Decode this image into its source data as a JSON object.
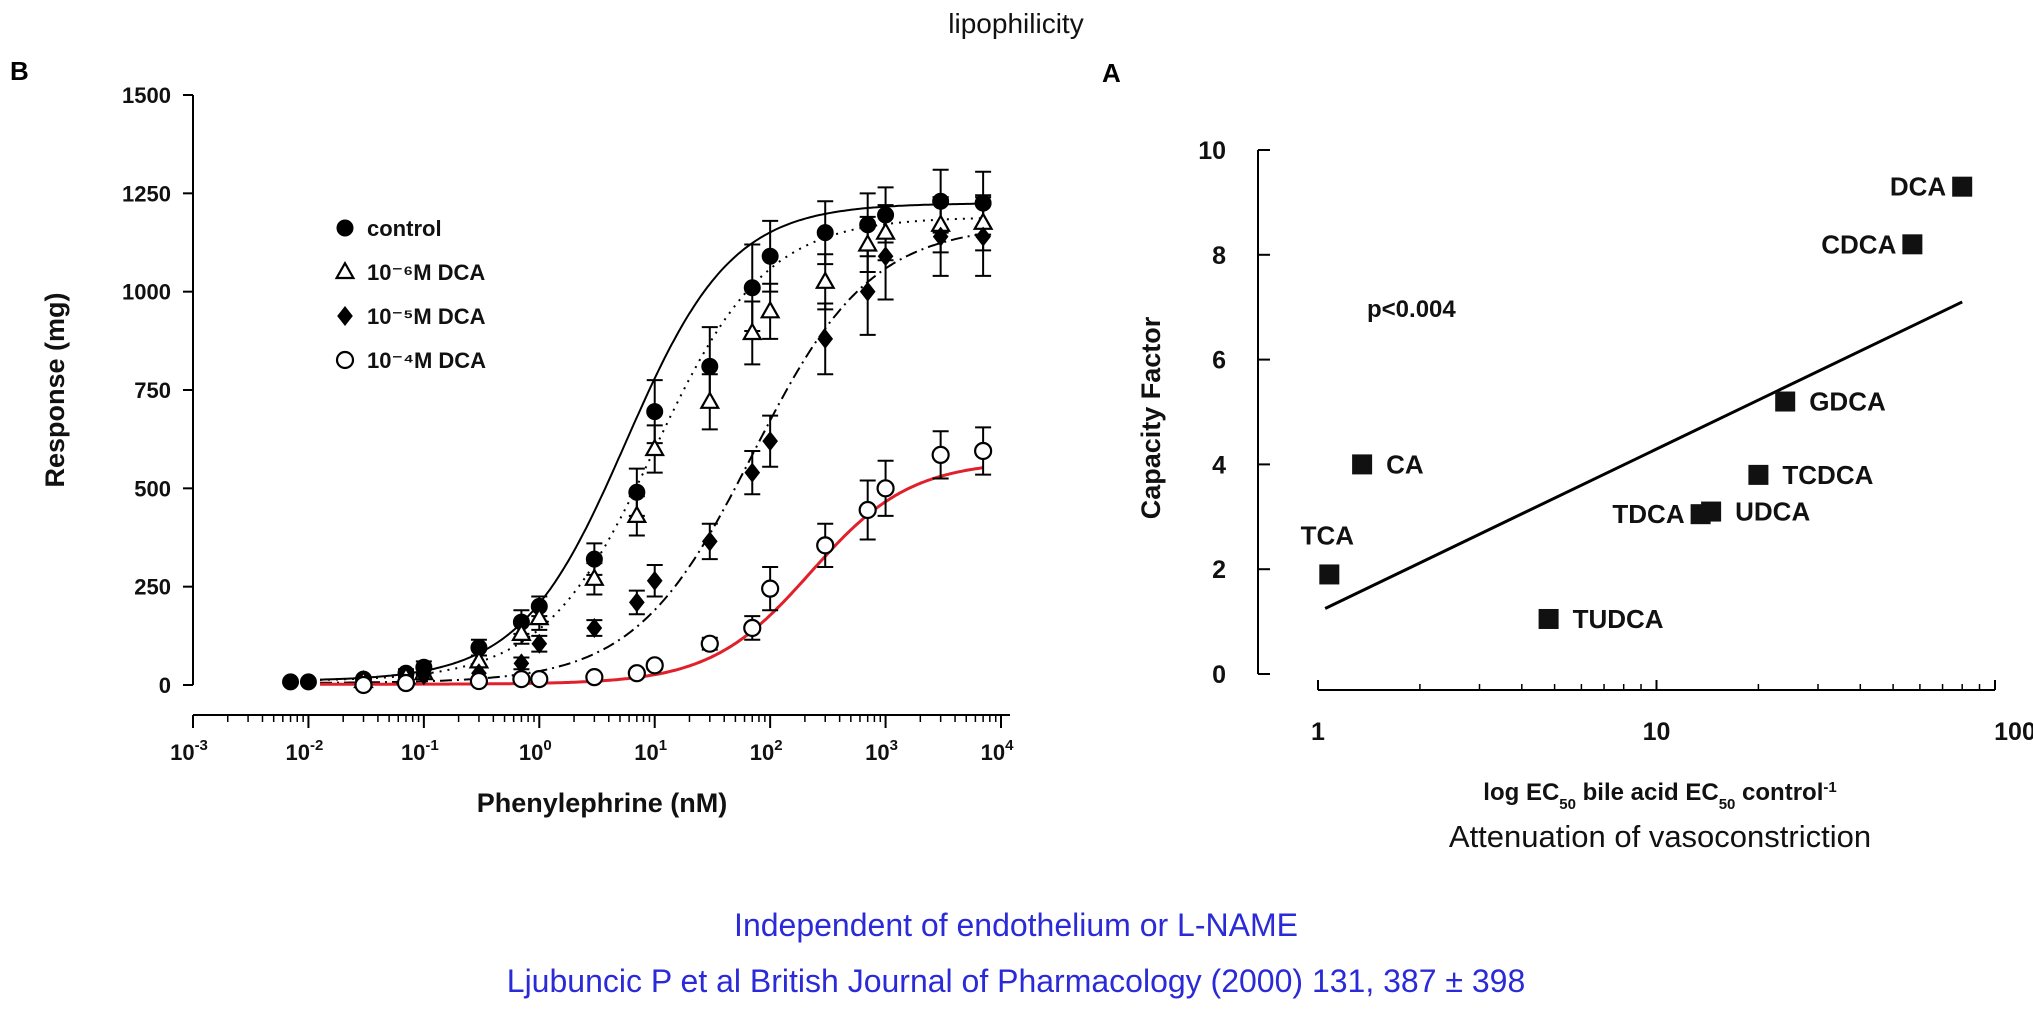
{
  "header": {
    "title": "lipophilicity"
  },
  "panel_b_letter": "B",
  "panel_a_letter": "A",
  "chart_data": [
    {
      "panel": "B",
      "type": "line",
      "xlabel": "Phenylephrine (nM)",
      "ylabel": "Response (mg)",
      "xscale": "log",
      "xlim_log10": [
        -3,
        4
      ],
      "x_tick_exponents": [
        "-3",
        "-2",
        "-1",
        "0",
        "1",
        "2",
        "3",
        "4"
      ],
      "ylim": [
        0,
        1500
      ],
      "y_ticks": [
        "0",
        "250",
        "500",
        "750",
        "1000",
        "1250",
        "1500"
      ],
      "legend_position": "top-left",
      "series": [
        {
          "name": "control",
          "marker": "filled-circle",
          "fit": {
            "bottom": 10,
            "top": 1225,
            "log_ec50": 0.75,
            "hill": 0.95,
            "style": "solid",
            "color": "#000000"
          },
          "points": [
            {
              "x": 0.007,
              "y": 8,
              "err": 0
            },
            {
              "x": 0.01,
              "y": 8,
              "err": 0
            },
            {
              "x": 0.03,
              "y": 15,
              "err": 0
            },
            {
              "x": 0.07,
              "y": 30,
              "err": 10
            },
            {
              "x": 0.1,
              "y": 45,
              "err": 15
            },
            {
              "x": 0.3,
              "y": 95,
              "err": 20
            },
            {
              "x": 0.7,
              "y": 160,
              "err": 30
            },
            {
              "x": 1,
              "y": 200,
              "err": 25
            },
            {
              "x": 3,
              "y": 320,
              "err": 40
            },
            {
              "x": 7,
              "y": 490,
              "err": 60
            },
            {
              "x": 10,
              "y": 695,
              "err": 80
            },
            {
              "x": 30,
              "y": 810,
              "err": 100
            },
            {
              "x": 70,
              "y": 1010,
              "err": 110
            },
            {
              "x": 100,
              "y": 1090,
              "err": 90
            },
            {
              "x": 300,
              "y": 1150,
              "err": 80
            },
            {
              "x": 700,
              "y": 1170,
              "err": 80
            },
            {
              "x": 1000,
              "y": 1195,
              "err": 70
            },
            {
              "x": 3000,
              "y": 1230,
              "err": 80
            },
            {
              "x": 7000,
              "y": 1225,
              "err": 80
            }
          ]
        },
        {
          "name": "10⁻⁶M DCA",
          "marker": "open-triangle",
          "fit": {
            "bottom": 10,
            "top": 1190,
            "log_ec50": 1.0,
            "hill": 0.9,
            "style": "dotted",
            "color": "#000000"
          },
          "points": [
            {
              "x": 0.03,
              "y": 10,
              "err": 0
            },
            {
              "x": 0.07,
              "y": 20,
              "err": 0
            },
            {
              "x": 0.1,
              "y": 30,
              "err": 10
            },
            {
              "x": 0.3,
              "y": 60,
              "err": 15
            },
            {
              "x": 0.7,
              "y": 130,
              "err": 25
            },
            {
              "x": 1,
              "y": 170,
              "err": 30
            },
            {
              "x": 3,
              "y": 270,
              "err": 40
            },
            {
              "x": 7,
              "y": 430,
              "err": 50
            },
            {
              "x": 10,
              "y": 600,
              "err": 60
            },
            {
              "x": 30,
              "y": 720,
              "err": 70
            },
            {
              "x": 70,
              "y": 895,
              "err": 80
            },
            {
              "x": 100,
              "y": 950,
              "err": 70
            },
            {
              "x": 300,
              "y": 1025,
              "err": 70
            },
            {
              "x": 700,
              "y": 1120,
              "err": 70
            },
            {
              "x": 1000,
              "y": 1150,
              "err": 70
            },
            {
              "x": 3000,
              "y": 1170,
              "err": 70
            },
            {
              "x": 7000,
              "y": 1175,
              "err": 70
            }
          ]
        },
        {
          "name": "10⁻⁵M DCA",
          "marker": "filled-diamond",
          "fit": {
            "bottom": 5,
            "top": 1170,
            "log_ec50": 1.85,
            "hill": 0.85,
            "style": "dash-dot",
            "color": "#000000"
          },
          "points": [
            {
              "x": 0.1,
              "y": 25,
              "err": 0
            },
            {
              "x": 0.3,
              "y": 30,
              "err": 0
            },
            {
              "x": 0.7,
              "y": 55,
              "err": 15
            },
            {
              "x": 1,
              "y": 105,
              "err": 20
            },
            {
              "x": 3,
              "y": 145,
              "err": 20
            },
            {
              "x": 7,
              "y": 210,
              "err": 30
            },
            {
              "x": 10,
              "y": 265,
              "err": 40
            },
            {
              "x": 30,
              "y": 365,
              "err": 45
            },
            {
              "x": 70,
              "y": 540,
              "err": 55
            },
            {
              "x": 100,
              "y": 620,
              "err": 65
            },
            {
              "x": 300,
              "y": 880,
              "err": 90
            },
            {
              "x": 700,
              "y": 1000,
              "err": 110
            },
            {
              "x": 1000,
              "y": 1090,
              "err": 110
            },
            {
              "x": 3000,
              "y": 1140,
              "err": 100
            },
            {
              "x": 7000,
              "y": 1140,
              "err": 100
            }
          ]
        },
        {
          "name": "10⁻⁴M DCA",
          "marker": "open-circle",
          "fit": {
            "bottom": 2,
            "top": 570,
            "log_ec50": 2.35,
            "hill": 1.0,
            "style": "solid",
            "color": "#e0202a"
          },
          "points": [
            {
              "x": 0.03,
              "y": 0,
              "err": 0
            },
            {
              "x": 0.07,
              "y": 5,
              "err": 0
            },
            {
              "x": 0.3,
              "y": 10,
              "err": 0
            },
            {
              "x": 0.7,
              "y": 15,
              "err": 0
            },
            {
              "x": 1,
              "y": 15,
              "err": 0
            },
            {
              "x": 3,
              "y": 20,
              "err": 0
            },
            {
              "x": 7,
              "y": 30,
              "err": 0
            },
            {
              "x": 10,
              "y": 50,
              "err": 10
            },
            {
              "x": 30,
              "y": 105,
              "err": 15
            },
            {
              "x": 70,
              "y": 145,
              "err": 30
            },
            {
              "x": 100,
              "y": 245,
              "err": 55
            },
            {
              "x": 300,
              "y": 355,
              "err": 55
            },
            {
              "x": 700,
              "y": 445,
              "err": 75
            },
            {
              "x": 1000,
              "y": 500,
              "err": 70
            },
            {
              "x": 3000,
              "y": 585,
              "err": 60
            },
            {
              "x": 7000,
              "y": 595,
              "err": 60
            }
          ]
        }
      ]
    },
    {
      "panel": "A",
      "type": "scatter",
      "xscale": "log",
      "xlim": [
        1,
        100
      ],
      "x_ticks": [
        "1",
        "10",
        "100"
      ],
      "ylim": [
        0,
        10
      ],
      "y_ticks": [
        "0",
        "2",
        "4",
        "6",
        "8",
        "10"
      ],
      "ylabel": "Capacity Factor",
      "xlabel_main": "log EC",
      "xlabel_sub1": "50",
      "xlabel_mid": " bile acid EC",
      "xlabel_sub2": "50",
      "xlabel_end": " control",
      "xlabel_sup": "-1",
      "xlabel_caption": "Attenuation of vasoconstriction",
      "annotation": "p<0.004",
      "marker": "filled-square",
      "regression": {
        "x": [
          1.05,
          80
        ],
        "y": [
          1.25,
          7.1
        ]
      },
      "points": [
        {
          "label": "DCA",
          "x": 80,
          "y": 9.3
        },
        {
          "label": "CDCA",
          "x": 57,
          "y": 8.2
        },
        {
          "label": "GDCA",
          "x": 24,
          "y": 5.2
        },
        {
          "label": "TCDCA",
          "x": 20,
          "y": 3.8
        },
        {
          "label": "UDCA",
          "x": 14.5,
          "y": 3.1
        },
        {
          "label": "TDCA",
          "x": 13.5,
          "y": 3.05
        },
        {
          "label": "CA",
          "x": 1.35,
          "y": 4.0
        },
        {
          "label": "TCA",
          "x": 1.08,
          "y": 1.9
        },
        {
          "label": "TUDCA",
          "x": 4.8,
          "y": 1.05
        }
      ]
    }
  ],
  "footer": {
    "line1": "Independent of endothelium or L-NAME",
    "line2": "Ljubuncic P et al British Journal of Pharmacology (2000) 131, 387 ± 398"
  }
}
